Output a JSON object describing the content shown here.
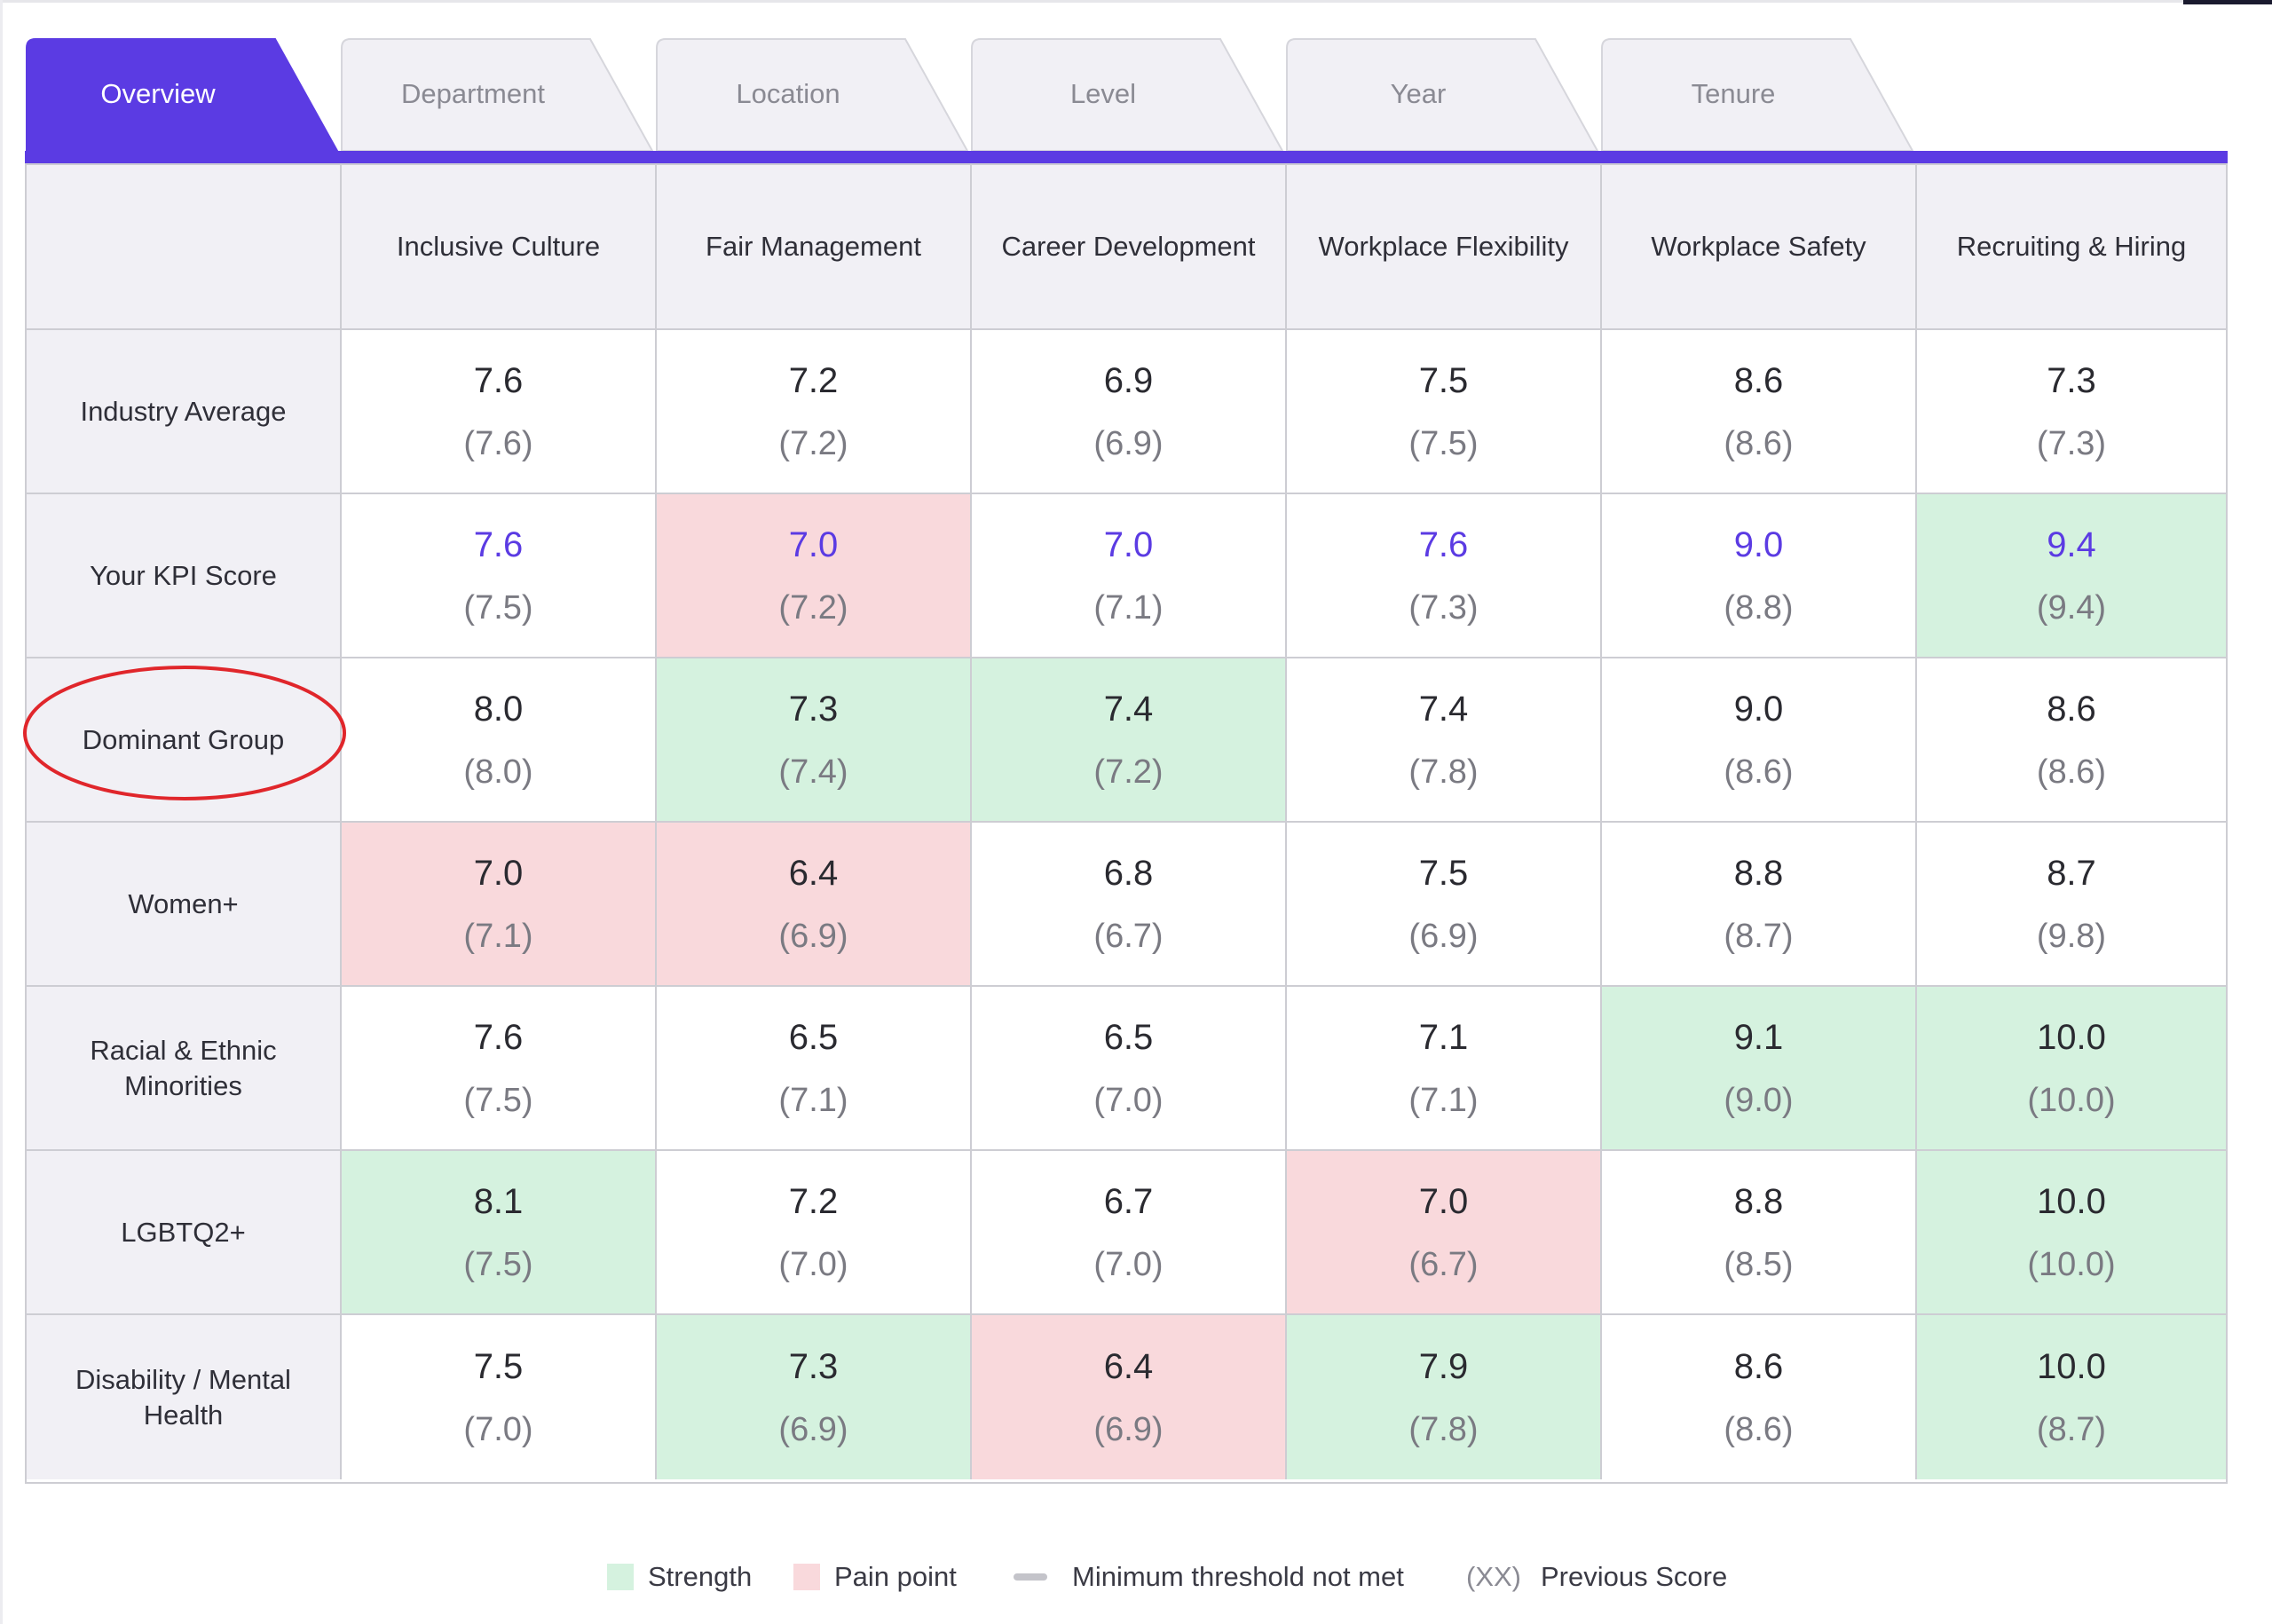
{
  "tabs": [
    {
      "label": "Overview",
      "active": true
    },
    {
      "label": "Department",
      "active": false
    },
    {
      "label": "Location",
      "active": false
    },
    {
      "label": "Level",
      "active": false
    },
    {
      "label": "Year",
      "active": false
    },
    {
      "label": "Tenure",
      "active": false
    }
  ],
  "columns": [
    "Inclusive Culture",
    "Fair Management",
    "Career Development",
    "Workplace Flexibility",
    "Workplace Safety",
    "Recruiting & Hiring"
  ],
  "rows": [
    {
      "label": "Industry Average",
      "cells": [
        {
          "score": "7.6",
          "prev": "(7.6)",
          "status": "none"
        },
        {
          "score": "7.2",
          "prev": "(7.2)",
          "status": "none"
        },
        {
          "score": "6.9",
          "prev": "(6.9)",
          "status": "none"
        },
        {
          "score": "7.5",
          "prev": "(7.5)",
          "status": "none"
        },
        {
          "score": "8.6",
          "prev": "(8.6)",
          "status": "none"
        },
        {
          "score": "7.3",
          "prev": "(7.3)",
          "status": "none"
        }
      ]
    },
    {
      "label": "Your KPI Score",
      "highlight": true,
      "cells": [
        {
          "score": "7.6",
          "prev": "(7.5)",
          "status": "none"
        },
        {
          "score": "7.0",
          "prev": "(7.2)",
          "status": "pain"
        },
        {
          "score": "7.0",
          "prev": "(7.1)",
          "status": "none"
        },
        {
          "score": "7.6",
          "prev": "(7.3)",
          "status": "none"
        },
        {
          "score": "9.0",
          "prev": "(8.8)",
          "status": "none"
        },
        {
          "score": "9.4",
          "prev": "(9.4)",
          "status": "strength"
        }
      ]
    },
    {
      "label": "Dominant Group",
      "circled": true,
      "cells": [
        {
          "score": "8.0",
          "prev": "(8.0)",
          "status": "none"
        },
        {
          "score": "7.3",
          "prev": "(7.4)",
          "status": "strength"
        },
        {
          "score": "7.4",
          "prev": "(7.2)",
          "status": "strength"
        },
        {
          "score": "7.4",
          "prev": "(7.8)",
          "status": "none"
        },
        {
          "score": "9.0",
          "prev": "(8.6)",
          "status": "none"
        },
        {
          "score": "8.6",
          "prev": "(8.6)",
          "status": "none"
        }
      ]
    },
    {
      "label": "Women+",
      "cells": [
        {
          "score": "7.0",
          "prev": "(7.1)",
          "status": "pain"
        },
        {
          "score": "6.4",
          "prev": "(6.9)",
          "status": "pain"
        },
        {
          "score": "6.8",
          "prev": "(6.7)",
          "status": "none"
        },
        {
          "score": "7.5",
          "prev": "(6.9)",
          "status": "none"
        },
        {
          "score": "8.8",
          "prev": "(8.7)",
          "status": "none"
        },
        {
          "score": "8.7",
          "prev": "(9.8)",
          "status": "none"
        }
      ]
    },
    {
      "label": "Racial & Ethnic Minorities",
      "cells": [
        {
          "score": "7.6",
          "prev": "(7.5)",
          "status": "none"
        },
        {
          "score": "6.5",
          "prev": "(7.1)",
          "status": "none"
        },
        {
          "score": "6.5",
          "prev": "(7.0)",
          "status": "none"
        },
        {
          "score": "7.1",
          "prev": "(7.1)",
          "status": "none"
        },
        {
          "score": "9.1",
          "prev": "(9.0)",
          "status": "strength"
        },
        {
          "score": "10.0",
          "prev": "(10.0)",
          "status": "strength"
        }
      ]
    },
    {
      "label": "LGBTQ2+",
      "cells": [
        {
          "score": "8.1",
          "prev": "(7.5)",
          "status": "strength"
        },
        {
          "score": "7.2",
          "prev": "(7.0)",
          "status": "none"
        },
        {
          "score": "6.7",
          "prev": "(7.0)",
          "status": "none"
        },
        {
          "score": "7.0",
          "prev": "(6.7)",
          "status": "pain"
        },
        {
          "score": "8.8",
          "prev": "(8.5)",
          "status": "none"
        },
        {
          "score": "10.0",
          "prev": "(10.0)",
          "status": "strength"
        }
      ]
    },
    {
      "label": "Disability / Mental Health",
      "cells": [
        {
          "score": "7.5",
          "prev": "(7.0)",
          "status": "none"
        },
        {
          "score": "7.3",
          "prev": "(6.9)",
          "status": "strength"
        },
        {
          "score": "6.4",
          "prev": "(6.9)",
          "status": "pain"
        },
        {
          "score": "7.9",
          "prev": "(7.8)",
          "status": "strength"
        },
        {
          "score": "8.6",
          "prev": "(8.6)",
          "status": "none"
        },
        {
          "score": "10.0",
          "prev": "(8.7)",
          "status": "strength"
        }
      ]
    }
  ],
  "legend": {
    "strength": "Strength",
    "pain": "Pain point",
    "threshold": "Minimum threshold not met",
    "xx": "(XX)",
    "previous": "Previous Score"
  },
  "colors": {
    "accent": "#5b3be3",
    "strength": "#d5f2df",
    "pain": "#f9d9dc",
    "annotation": "#e0262b"
  }
}
